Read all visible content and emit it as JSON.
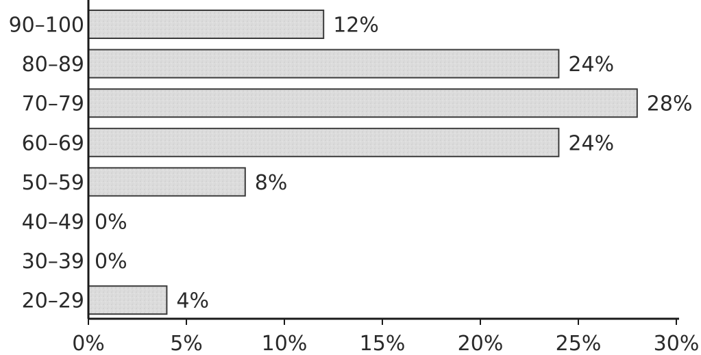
{
  "chart_data": {
    "type": "bar",
    "orientation": "horizontal",
    "categories": [
      "90–100",
      "80–89",
      "70–79",
      "60–69",
      "50–59",
      "40–49",
      "30–39",
      "20–29"
    ],
    "values": [
      12,
      24,
      28,
      24,
      8,
      0,
      0,
      4
    ],
    "data_labels": [
      "12%",
      "24%",
      "28%",
      "24%",
      "8%",
      "0%",
      "0%",
      "4%"
    ],
    "xticks": [
      0,
      5,
      10,
      15,
      20,
      25,
      30
    ],
    "xtick_labels": [
      "0%",
      "5%",
      "10%",
      "15%",
      "20%",
      "25%",
      "30%"
    ],
    "xlim": [
      0,
      30
    ],
    "grid": false,
    "colors": {
      "bar_fill": "#dddddd",
      "bar_stroke": "#3a3a3a"
    }
  }
}
